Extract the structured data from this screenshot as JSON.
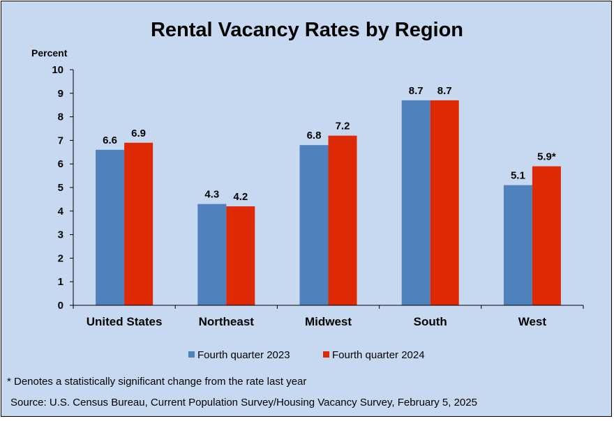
{
  "chart_data": {
    "type": "bar",
    "title": "Rental Vacancy Rates by Region",
    "ylabel": "Percent",
    "ylim": [
      0,
      10
    ],
    "yticks": [
      0,
      1,
      2,
      3,
      4,
      5,
      6,
      7,
      8,
      9,
      10
    ],
    "grid": false,
    "legend_position": "bottom",
    "categories": [
      "United States",
      "Northeast",
      "Midwest",
      "South",
      "West"
    ],
    "series": [
      {
        "name": "Fourth quarter 2023",
        "color": "#4f81bd",
        "values": [
          6.6,
          4.3,
          6.8,
          8.7,
          5.1
        ],
        "labels": [
          "6.6",
          "4.3",
          "6.8",
          "8.7",
          "5.1"
        ]
      },
      {
        "name": "Fourth quarter 2024",
        "color": "#dd2a04",
        "values": [
          6.9,
          4.2,
          7.2,
          8.7,
          5.9
        ],
        "labels": [
          "6.9",
          "4.2",
          "7.2",
          "8.7",
          "5.9*"
        ]
      }
    ]
  },
  "notes": {
    "significance": "* Denotes a statistically significant change from the rate last year",
    "source": "Source: U.S. Census Bureau, Current Population Survey/Housing Vacancy Survey, February 5, 2025"
  },
  "colors": {
    "background": "#c6d9f1",
    "axis": "#000000"
  }
}
